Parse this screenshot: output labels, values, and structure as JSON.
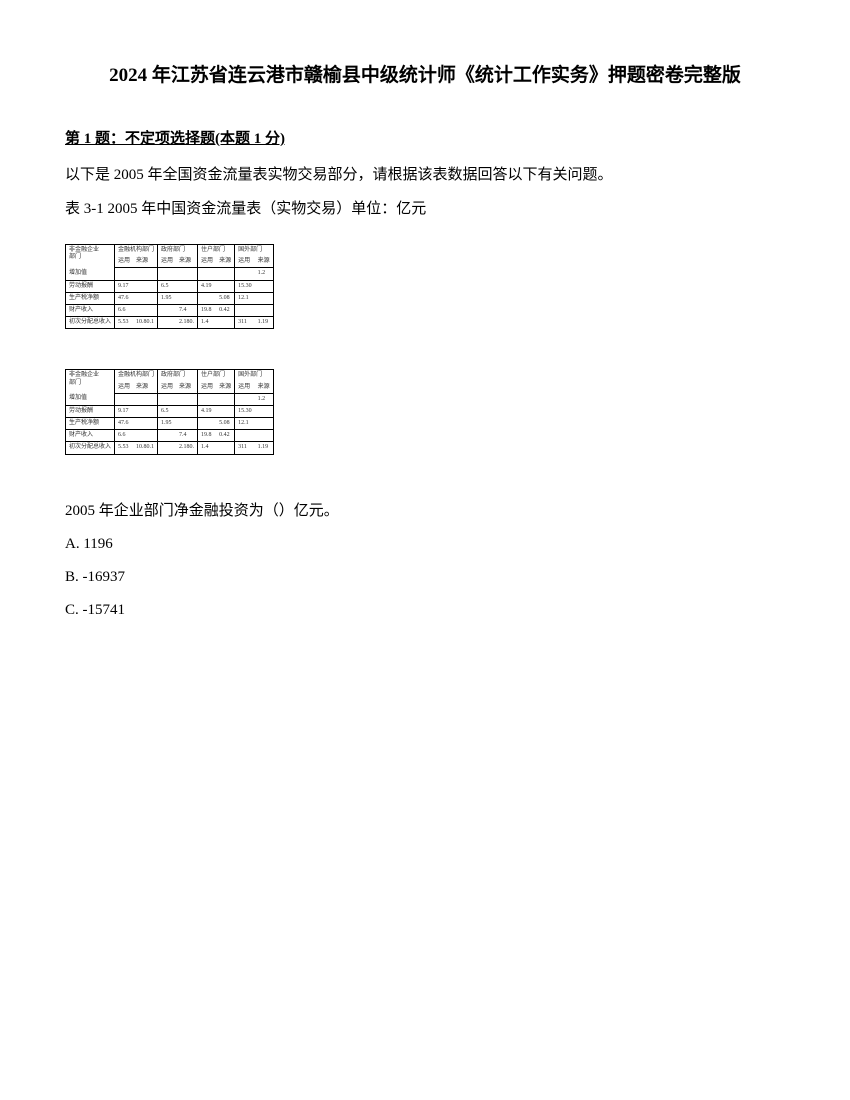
{
  "document": {
    "title": "2024 年江苏省连云港市赣榆县中级统计师《统计工作实务》押题密卷完整版",
    "question_header": "第 1 题：不定项选择题(本题 1 分)",
    "intro_line1": "以下是 2005 年全国资金流量表实物交易部分，请根据该表数据回答以下有关问题。",
    "intro_line2": "表 3-1  2005 年中国资金流量表（实物交易）单位：亿元",
    "question_text": "2005 年企业部门净金融投资为（）亿元。",
    "options": {
      "a": "A. 1196",
      "b": "B. -16937",
      "c": "C. -15741"
    }
  },
  "table": {
    "header_row1": [
      "非金融企业部门",
      "金融机构部门",
      "政府部门",
      "住户部门",
      "国外部门"
    ],
    "header_row2": [
      "项目",
      "运用",
      "来源",
      "运用",
      "来源",
      "运用",
      "来源",
      "运用",
      "来源",
      "运用"
    ],
    "rows": [
      {
        "label": "增加值",
        "cells": [
          "",
          "",
          "",
          "",
          "",
          "",
          "",
          "",
          "1.2"
        ]
      },
      {
        "label": "劳动报酬",
        "cells": [
          "9.17",
          "",
          "6.5",
          "",
          "4.19",
          "",
          "15.30",
          "",
          ""
        ]
      },
      {
        "label": "生产税净额",
        "cells": [
          "47.6",
          "",
          "1.95",
          "",
          "",
          "5.08",
          "12.1",
          "0.19",
          ""
        ]
      },
      {
        "label": "财产收入",
        "cells": [
          "6.6",
          "",
          "",
          "7.4",
          "19.8",
          "0.42",
          "",
          "",
          ""
        ]
      },
      {
        "label": "初次分配总收入",
        "cells": [
          "5.53",
          "10.80.1",
          "",
          "2.180.",
          "1.4",
          "",
          "311",
          "10.60.",
          "1.19"
        ]
      }
    ]
  }
}
